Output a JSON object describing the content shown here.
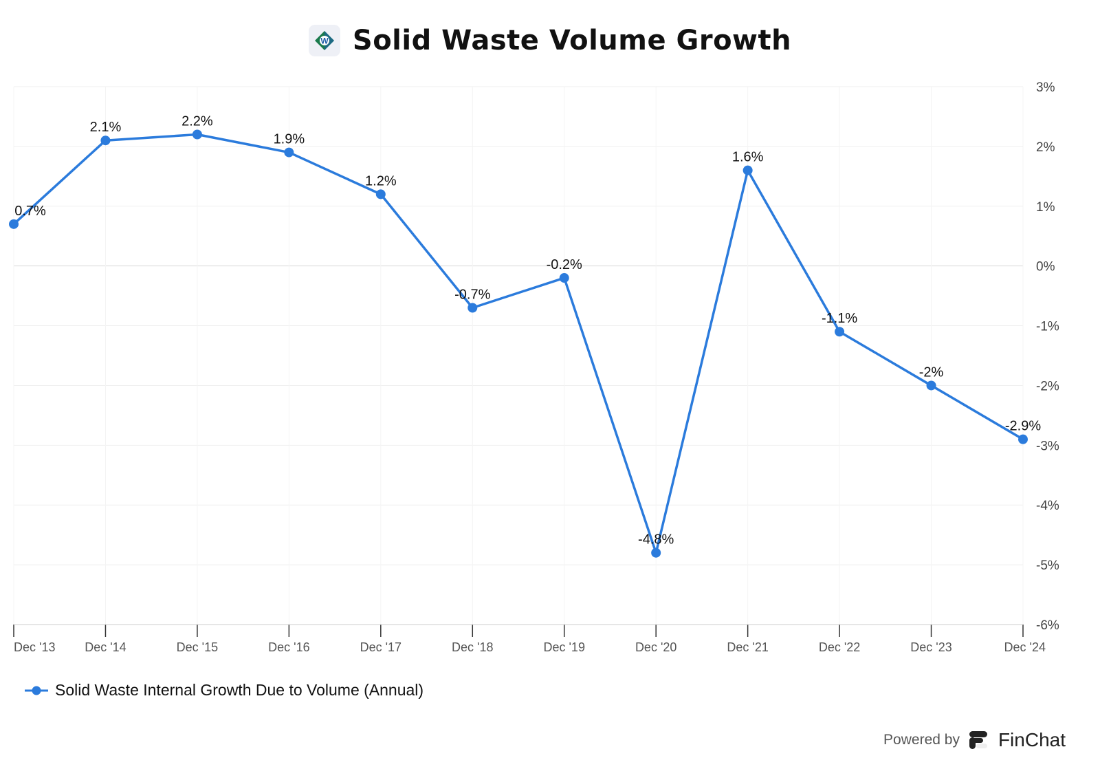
{
  "title": "Solid Waste Volume Growth",
  "colors": {
    "series": "#2b7bdc",
    "grid": "#efefef",
    "zero": "#d8d8d8"
  },
  "chart_data": {
    "type": "line",
    "title": "Solid Waste Volume Growth",
    "x": [
      "Dec '13",
      "Dec '14",
      "Dec '15",
      "Dec '16",
      "Dec '17",
      "Dec '18",
      "Dec '19",
      "Dec '20",
      "Dec '21",
      "Dec '22",
      "Dec '23",
      "Dec '24"
    ],
    "series": [
      {
        "name": "Solid Waste Internal Growth Due to Volume (Annual)",
        "values": [
          0.7,
          2.1,
          2.2,
          1.9,
          1.2,
          -0.7,
          -0.2,
          -4.8,
          1.6,
          -1.1,
          -2,
          -2.9
        ]
      }
    ],
    "data_labels": [
      "0.7%",
      "2.1%",
      "2.2%",
      "1.9%",
      "1.2%",
      "-0.7%",
      "-0.2%",
      "-4.8%",
      "1.6%",
      "-1.1%",
      "-2%",
      "-2.9%"
    ],
    "yticks": [
      3,
      2,
      1,
      0,
      -1,
      -2,
      -3,
      -4,
      -5,
      -6
    ],
    "ytick_labels": [
      "3%",
      "2%",
      "1%",
      "0%",
      "-1%",
      "-2%",
      "-3%",
      "-4%",
      "-5%",
      "-6%"
    ],
    "ylim": [
      -6,
      3
    ],
    "y_axis_side": "right",
    "grid": true,
    "legend": "bottom-left"
  },
  "legend": {
    "label": "Solid Waste Internal Growth Due to Volume (Annual)"
  },
  "footer": {
    "powered_by": "Powered by",
    "brand": "FinChat"
  }
}
